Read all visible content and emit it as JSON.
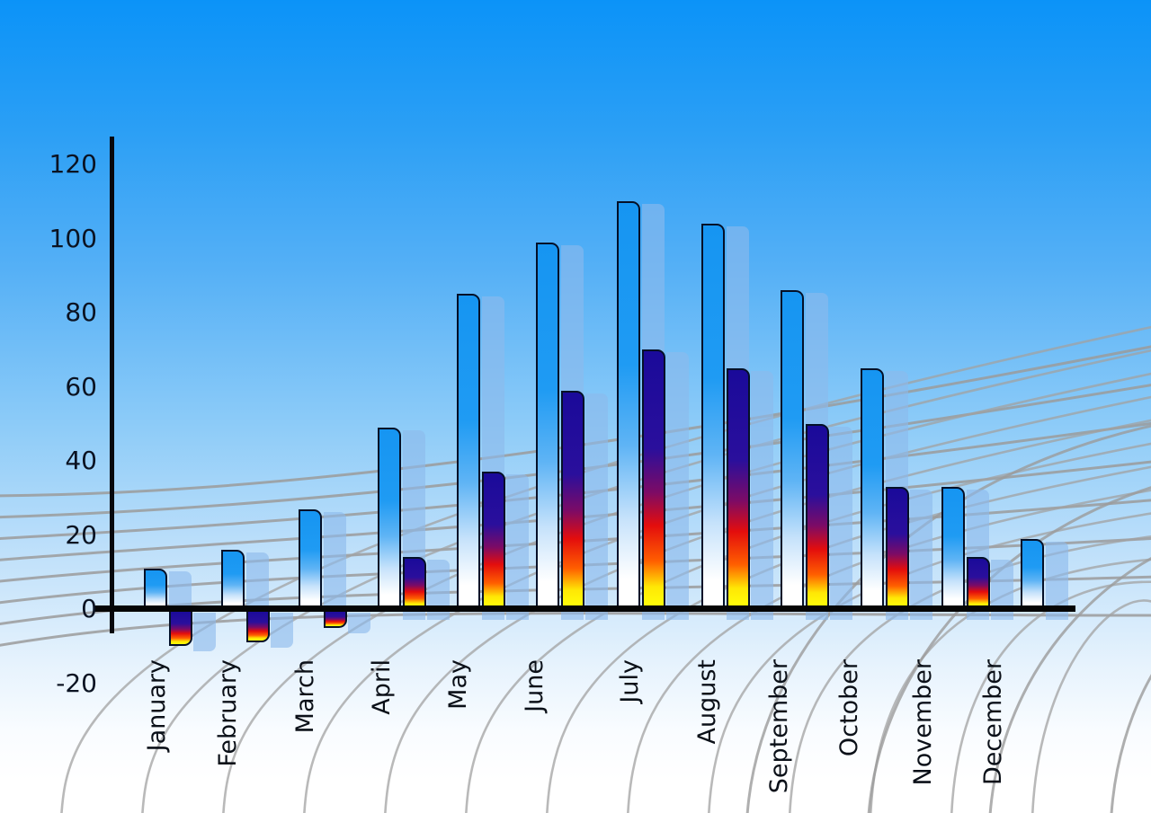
{
  "chart_data": {
    "type": "bar",
    "title": "",
    "categories": [
      "January",
      "February",
      "March",
      "April",
      "May",
      "June",
      "July",
      "August",
      "September",
      "October",
      "November",
      "December"
    ],
    "series": [
      {
        "name": "primary-blue",
        "values": [
          11,
          16,
          27,
          49,
          85,
          99,
          110,
          104,
          86,
          65,
          33,
          19
        ]
      },
      {
        "name": "secondary-navy-red-yellow",
        "values": [
          -10,
          -9,
          -5,
          14,
          37,
          59,
          70,
          65,
          50,
          33,
          14,
          null
        ]
      }
    ],
    "y_axis": {
      "ticks": [
        120,
        100,
        80,
        60,
        40,
        20,
        0,
        -20
      ],
      "min": -20,
      "max": 120
    },
    "xlabel": "",
    "ylabel": "",
    "legend": "none",
    "grid": "decorative curved gray perspective mesh behind bars"
  },
  "colors": {
    "sky_top": "#0b93f8",
    "sky_bottom": "#ffffff",
    "bar_blue_top": "#1695f2",
    "bar_blue_bottom": "#ffffff",
    "bar2_navy": "#1a0a9a",
    "bar2_red": "#e30d0d",
    "bar2_yellow": "#ffff0a",
    "bar_outline": "#041028",
    "shadow_bar": "rgba(140,185,235,0.62)",
    "grid_line": "#9b9b9b",
    "axis_line": "#050505",
    "label_text": "#0b1018"
  }
}
